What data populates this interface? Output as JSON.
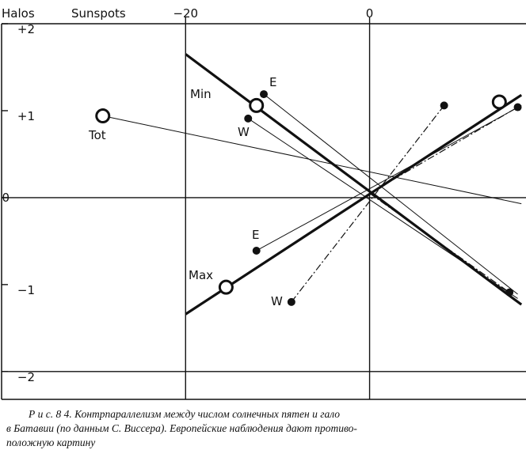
{
  "chart_data": {
    "type": "line",
    "ylabel": "Halos",
    "xlabel": "Sunspots",
    "xlim": [
      -40,
      17
    ],
    "ylim": [
      -2.32,
      2
    ],
    "xticks": [
      {
        "value": -20,
        "label": "−20"
      },
      0
    ],
    "yticks": [
      {
        "value": 2,
        "label": "+2"
      },
      {
        "value": 1,
        "label": "+1"
      },
      0,
      {
        "value": -1,
        "label": "−1"
      },
      {
        "value": -2,
        "label": "−2"
      }
    ],
    "color": "#111111",
    "lines": [
      {
        "x": [
          -20,
          16.5
        ],
        "values": [
          1.65,
          -1.23
        ],
        "style": "thick"
      },
      {
        "x": [
          -20,
          16.5
        ],
        "values": [
          -1.34,
          1.18
        ],
        "style": "thick"
      },
      {
        "x": [
          -29,
          16.5
        ],
        "values": [
          0.94,
          -0.07
        ],
        "style": "solid"
      },
      {
        "x": [
          -11.5,
          16.1
        ],
        "values": [
          1.19,
          -1.11
        ],
        "style": "solid"
      },
      {
        "x": [
          -13.2,
          16.1
        ],
        "values": [
          0.91,
          -1.16
        ],
        "style": "solid"
      },
      {
        "x": [
          -12.3,
          16.5
        ],
        "values": [
          -0.61,
          1.06
        ],
        "style": "solid"
      },
      {
        "x": [
          -8.5,
          8.1
        ],
        "values": [
          -1.2,
          1.06
        ],
        "style": "dashdot"
      },
      {
        "x": [
          0,
          16.1
        ],
        "values": [
          0.05,
          1.04
        ],
        "style": "dashdot"
      },
      {
        "x": [
          0,
          15.2
        ],
        "values": [
          0.05,
          -1.09
        ],
        "style": "dashdot"
      }
    ],
    "open_points": {
      "x": [
        -29,
        -12.3,
        -15.6,
        14.1
      ],
      "values": [
        0.94,
        1.06,
        -1.03,
        1.1
      ]
    },
    "filled_points": {
      "x": [
        -11.5,
        -13.2,
        -12.3,
        -8.5,
        8.1,
        16.1,
        15.2
      ],
      "values": [
        1.19,
        0.91,
        -0.61,
        -1.2,
        1.06,
        1.04,
        -1.09
      ]
    },
    "annotations": [
      "Min",
      "E",
      "W",
      "Tot",
      "E",
      "Max",
      "W"
    ],
    "caption": [
      "Р и с. 8 4.  Контрпараллелизм между числом солнечных пятен и гало",
      "в Батавии (по данным С. Виссера). Европейские наблюдения дают противо-",
      "положную картину"
    ]
  }
}
